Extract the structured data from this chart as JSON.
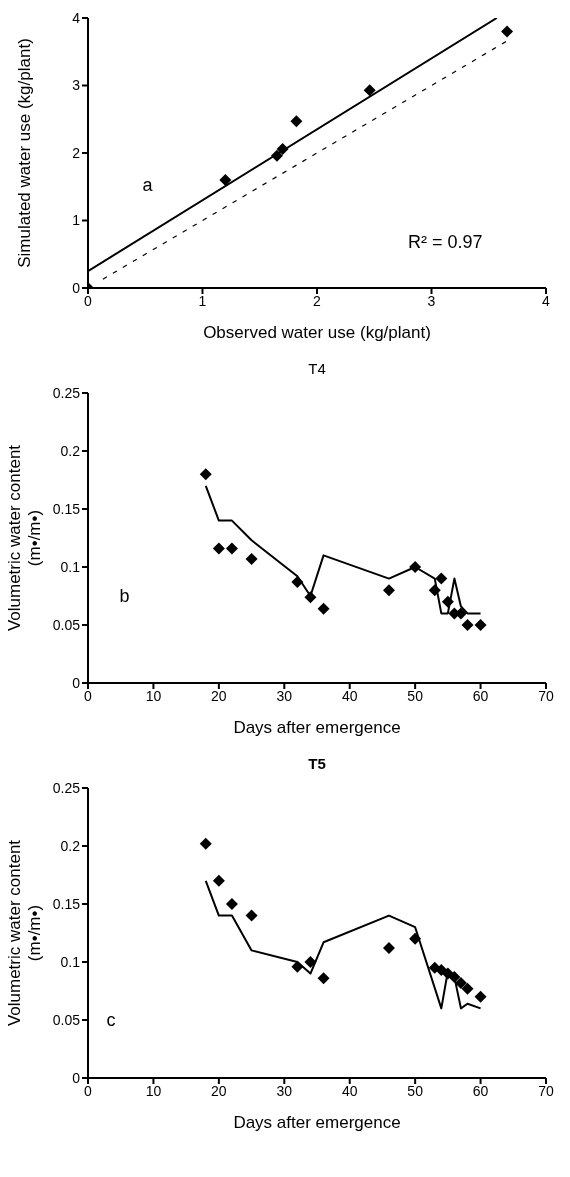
{
  "chart_data": [
    {
      "type": "scatter",
      "xlabel": "Observed water use (kg/plant)",
      "ylabel": "Simulated water use (kg/plant)",
      "xlim": [
        0,
        4
      ],
      "ylim": [
        0,
        4
      ],
      "xticks": [
        0,
        1,
        2,
        3,
        4
      ],
      "yticks": [
        0,
        1,
        2,
        3,
        4
      ],
      "grid": false,
      "annotations": [
        "a",
        "R² = 0.97"
      ],
      "series": [
        {
          "color": "#000000",
          "marker": "diamond",
          "x": [
            0,
            1.2,
            1.65,
            1.7,
            1.82,
            2.46,
            3.66
          ],
          "values": [
            0,
            1.6,
            1.96,
            2.06,
            2.47,
            2.93,
            3.8
          ]
        },
        {
          "type": "line",
          "color": "#000000",
          "marker": "none",
          "line_style": "solid",
          "x": [
            0,
            3.57
          ],
          "values": [
            0.25,
            4
          ]
        },
        {
          "type": "line",
          "color": "#000000",
          "marker": "none",
          "line_style": "dotted",
          "x": [
            0.13,
            3.65
          ],
          "values": [
            0.13,
            3.65
          ]
        }
      ]
    },
    {
      "type": "scatter",
      "title": "T4",
      "xlabel": "Days after emergence",
      "ylabel": "Volumetric water content (m•/m•)",
      "xlim": [
        0,
        70
      ],
      "ylim": [
        0,
        0.25
      ],
      "xticks": [
        0,
        10,
        20,
        30,
        40,
        50,
        60,
        70
      ],
      "yticks": [
        0,
        0.05,
        0.1,
        0.15,
        0.2,
        0.25
      ],
      "grid": false,
      "annotations": [
        "b"
      ],
      "series": [
        {
          "color": "#000000",
          "marker": "diamond",
          "x": [
            18,
            20,
            22,
            25,
            32,
            34,
            36,
            46,
            50,
            53,
            54,
            55,
            56,
            57,
            58,
            60
          ],
          "values": [
            0.18,
            0.116,
            0.116,
            0.107,
            0.087,
            0.074,
            0.064,
            0.08,
            0.1,
            0.08,
            0.09,
            0.07,
            0.06,
            0.06,
            0.05,
            0.05
          ]
        },
        {
          "type": "line",
          "color": "#000000",
          "marker": "none",
          "line_style": "solid",
          "x": [
            18,
            20,
            22,
            25,
            32,
            34,
            36,
            46,
            50,
            53,
            54,
            55,
            56,
            57,
            58,
            60
          ],
          "values": [
            0.17,
            0.14,
            0.14,
            0.123,
            0.092,
            0.075,
            0.11,
            0.09,
            0.1,
            0.09,
            0.06,
            0.06,
            0.09,
            0.066,
            0.06,
            0.06
          ]
        }
      ]
    },
    {
      "type": "scatter",
      "title": "T5",
      "xlabel": "Days after emergence",
      "ylabel": "Volumetric water content (m•/m•)",
      "xlim": [
        0,
        70
      ],
      "ylim": [
        0,
        0.25
      ],
      "xticks": [
        0,
        10,
        20,
        30,
        40,
        50,
        60,
        70
      ],
      "yticks": [
        0,
        0.05,
        0.1,
        0.15,
        0.2,
        0.25
      ],
      "grid": false,
      "annotations": [
        "c"
      ],
      "series": [
        {
          "color": "#000000",
          "marker": "diamond",
          "x": [
            18,
            20,
            22,
            25,
            32,
            34,
            36,
            46,
            50,
            53,
            54,
            55,
            56,
            57,
            58,
            60
          ],
          "values": [
            0.202,
            0.17,
            0.15,
            0.14,
            0.096,
            0.1,
            0.086,
            0.112,
            0.12,
            0.095,
            0.093,
            0.09,
            0.087,
            0.082,
            0.077,
            0.07
          ]
        },
        {
          "type": "line",
          "color": "#000000",
          "marker": "none",
          "line_style": "solid",
          "x": [
            18,
            20,
            22,
            25,
            32,
            34,
            36,
            46,
            50,
            54,
            55,
            56,
            57,
            58,
            60
          ],
          "values": [
            0.17,
            0.14,
            0.14,
            0.11,
            0.1,
            0.09,
            0.117,
            0.14,
            0.13,
            0.06,
            0.092,
            0.087,
            0.06,
            0.064,
            0.06
          ]
        }
      ]
    }
  ]
}
